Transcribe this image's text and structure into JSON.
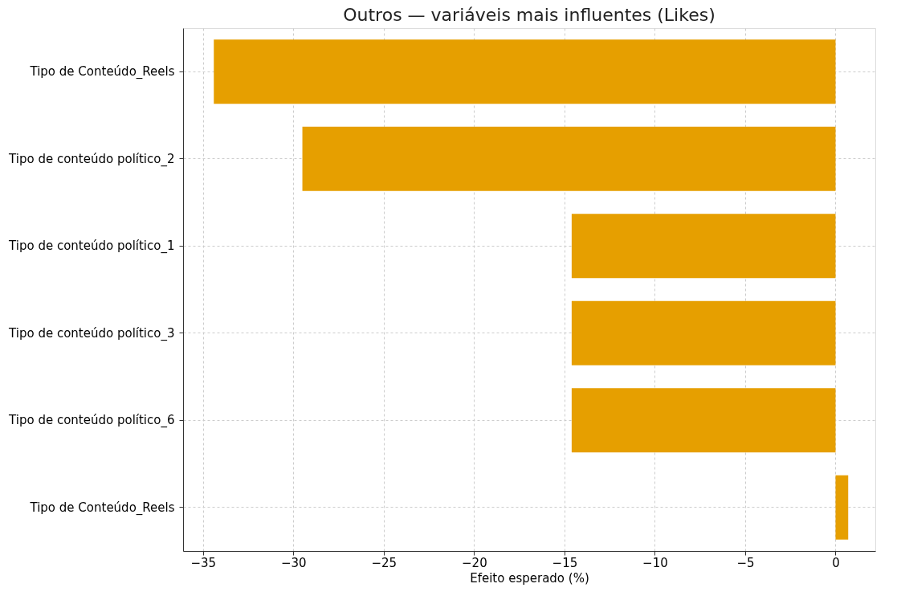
{
  "chart_data": {
    "type": "bar",
    "orientation": "horizontal",
    "title": "Outros — variáveis mais influentes (Likes)",
    "xlabel": "Efeito esperado (%)",
    "categories": [
      "Tipo de Conteúdo_Reels",
      "Tipo de conteúdo político_2",
      "Tipo de conteúdo político_1",
      "Tipo de conteúdo político_3",
      "Tipo de conteúdo político_6",
      "Tipo de Conteúdo_Reels"
    ],
    "values": [
      -34.4,
      -29.5,
      -14.6,
      -14.6,
      -14.6,
      0.7
    ],
    "color": "#e69f00",
    "xlim": [
      -36.1,
      2.2
    ],
    "xticks": [
      -35,
      -30,
      -25,
      -20,
      -15,
      -10,
      -5,
      0
    ],
    "grid": true
  }
}
